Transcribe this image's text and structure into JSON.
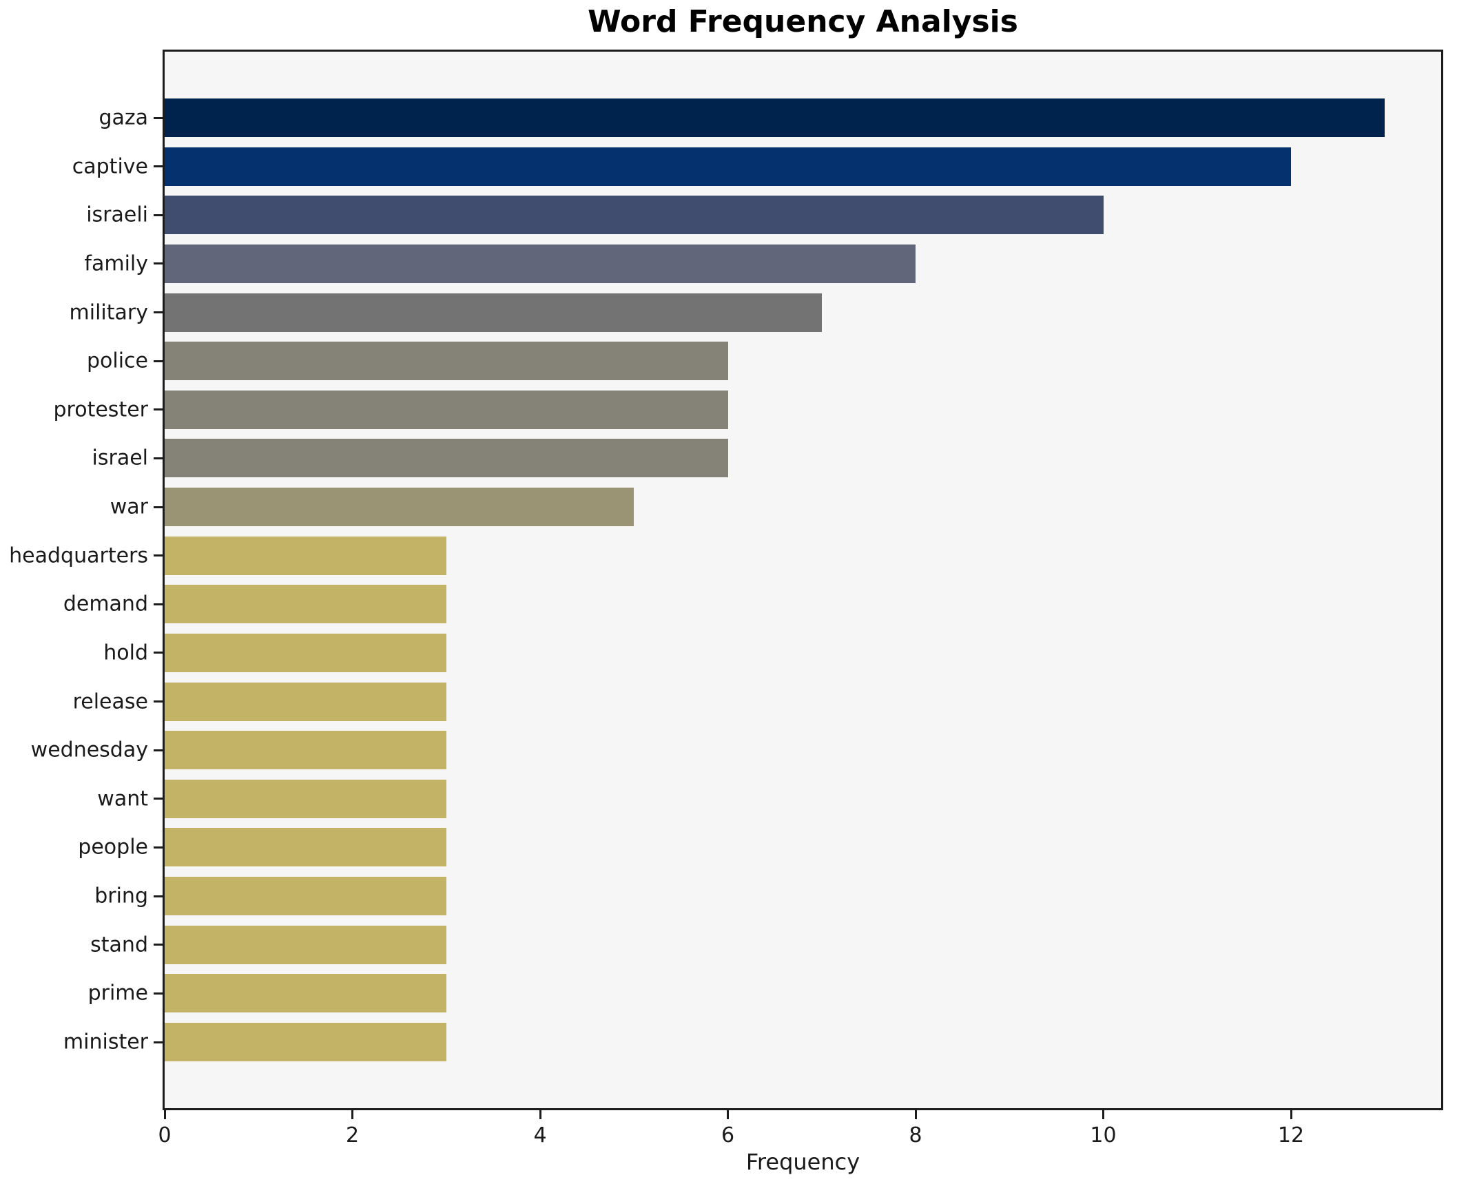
{
  "chart_data": {
    "type": "bar",
    "orientation": "horizontal",
    "title": "Word Frequency Analysis",
    "xlabel": "Frequency",
    "ylabel": "",
    "categories": [
      "gaza",
      "captive",
      "israeli",
      "family",
      "military",
      "police",
      "protester",
      "israel",
      "war",
      "headquarters",
      "demand",
      "hold",
      "release",
      "wednesday",
      "want",
      "people",
      "bring",
      "stand",
      "prime",
      "minister"
    ],
    "values": [
      13,
      12,
      10,
      8,
      7,
      6,
      6,
      6,
      5,
      3,
      3,
      3,
      3,
      3,
      3,
      3,
      3,
      3,
      3,
      3
    ],
    "bar_colors": [
      "#00234e",
      "#05316e",
      "#414d6e",
      "#62667a",
      "#737373",
      "#858277",
      "#858277",
      "#858277",
      "#9a9474",
      "#c3b366",
      "#c3b366",
      "#c3b366",
      "#c3b366",
      "#c3b366",
      "#c3b366",
      "#c3b366",
      "#c3b366",
      "#c3b366",
      "#c3b366",
      "#c3b366"
    ],
    "xticks": [
      0,
      2,
      4,
      6,
      8,
      10,
      12
    ],
    "xlim": [
      0,
      13.6
    ],
    "grid": false,
    "legend": null,
    "plot_background": "#f6f6f6",
    "figure_background": "#ffffff",
    "spine_color": "#1c1c1c"
  }
}
